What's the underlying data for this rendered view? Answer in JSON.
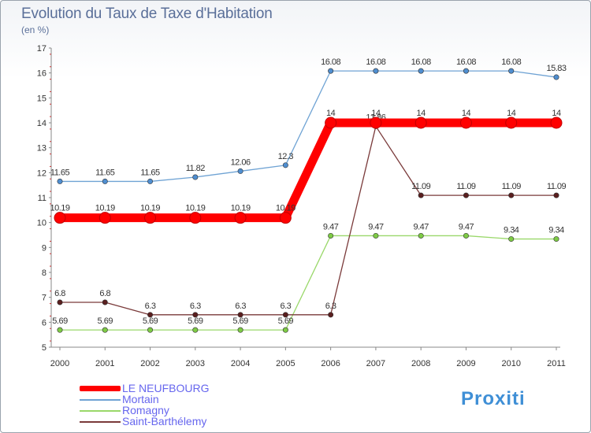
{
  "header": {
    "title": "Evolution du Taux de Taxe d'Habitation",
    "subtitle": "(en %)"
  },
  "logo": {
    "text": "Proxiti",
    "colors": [
      "#3f8fd6",
      "#f0a020",
      "#6cbf3a"
    ]
  },
  "chart_data": {
    "type": "line",
    "title": "Evolution du Taux de Taxe d'Habitation",
    "subtitle": "(en %)",
    "xlabel": "",
    "ylabel": "",
    "categories": [
      "2000",
      "2001",
      "2002",
      "2003",
      "2004",
      "2005",
      "2006",
      "2007",
      "2008",
      "2009",
      "2010",
      "2011"
    ],
    "ylim": [
      5,
      17
    ],
    "yticks": [
      5,
      6,
      7,
      8,
      9,
      10,
      11,
      12,
      13,
      14,
      15,
      16,
      17
    ],
    "grid": false,
    "legend_position": "bottom-left",
    "series": [
      {
        "name": "LE NEUFBOURG",
        "color": "#ff0000",
        "thick": true,
        "values": [
          10.19,
          10.19,
          10.19,
          10.19,
          10.19,
          10.19,
          14,
          14,
          14,
          14,
          14,
          14
        ],
        "labels": [
          "10.19",
          "10.19",
          "10.19",
          "10.19",
          "10.19",
          "10.19",
          "14",
          "14",
          "14",
          "14",
          "14",
          "14"
        ]
      },
      {
        "name": "Mortain",
        "color": "#6fa3d4",
        "marker": "#4f8ed0",
        "values": [
          11.65,
          11.65,
          11.65,
          11.82,
          12.06,
          12.3,
          16.08,
          16.08,
          16.08,
          16.08,
          16.08,
          15.83
        ],
        "labels": [
          "11.65",
          "11.65",
          "11.65",
          "11.82",
          "12.06",
          "12.3",
          "16.08",
          "16.08",
          "16.08",
          "16.08",
          "16.08",
          "15.83"
        ]
      },
      {
        "name": "Romagny",
        "color": "#9ad86a",
        "marker": "#7ecb45",
        "values": [
          5.69,
          5.69,
          5.69,
          5.69,
          5.69,
          5.69,
          9.47,
          9.47,
          9.47,
          9.47,
          9.34,
          9.34
        ],
        "labels": [
          "5.69",
          "5.69",
          "5.69",
          "5.69",
          "5.69",
          "5.69",
          "9.47",
          "9.47",
          "9.47",
          "9.47",
          "9.34",
          "9.34"
        ]
      },
      {
        "name": "Saint-Barthélemy",
        "color": "#7a3a3a",
        "marker": "#5a1f1f",
        "values": [
          6.8,
          6.8,
          6.3,
          6.3,
          6.3,
          6.3,
          6.3,
          13.86,
          11.09,
          11.09,
          11.09,
          11.09
        ],
        "labels": [
          "6.8",
          "6.8",
          "6.3",
          "6.3",
          "6.3",
          "6.3",
          "6.3",
          "13.86",
          "11.09",
          "11.09",
          "11.09",
          "11.09"
        ]
      }
    ]
  }
}
